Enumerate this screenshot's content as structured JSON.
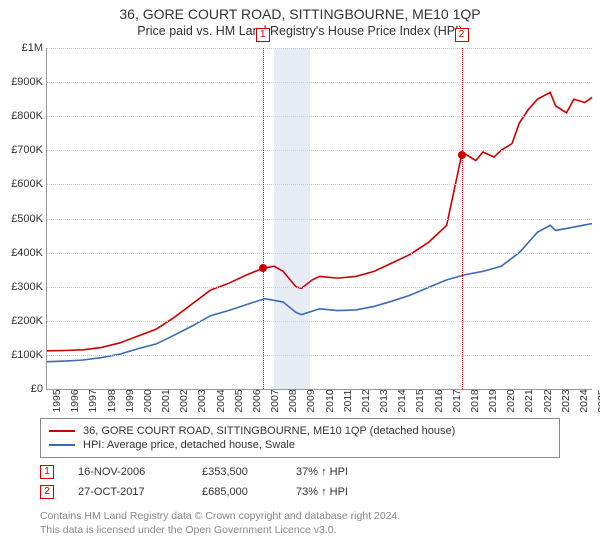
{
  "title": "36, GORE COURT ROAD, SITTINGBOURNE, ME10 1QP",
  "subtitle": "Price paid vs. HM Land Registry's House Price Index (HPI)",
  "chart": {
    "type": "line",
    "background_color": "#ffffff",
    "grid_color": "#cccccc",
    "axis_color": "#999999",
    "ylim": [
      0,
      1000000
    ],
    "yticks": [
      0,
      100000,
      200000,
      300000,
      400000,
      500000,
      600000,
      700000,
      800000,
      900000,
      1000000
    ],
    "ytick_labels": [
      "£0",
      "£100K",
      "£200K",
      "£300K",
      "£400K",
      "£500K",
      "£600K",
      "£700K",
      "£800K",
      "£900K",
      "£1M"
    ],
    "xlim": [
      1995,
      2025
    ],
    "xticks": [
      1995,
      1996,
      1997,
      1998,
      1999,
      2000,
      2001,
      2002,
      2003,
      2004,
      2005,
      2006,
      2007,
      2008,
      2009,
      2010,
      2011,
      2012,
      2013,
      2014,
      2015,
      2016,
      2017,
      2018,
      2019,
      2020,
      2021,
      2022,
      2023,
      2024,
      2025
    ],
    "label_fontsize": 11,
    "title_fontsize": 14,
    "line_width": 1.6,
    "band": {
      "start_year": 2007.5,
      "end_year": 2009.5,
      "color": "#e8edf5"
    },
    "series_property": {
      "label": "36, GORE COURT ROAD, SITTINGBOURNE, ME10 1QP (detached house)",
      "color": "#cc0000",
      "data": [
        [
          1995,
          112000
        ],
        [
          1996,
          113000
        ],
        [
          1997,
          115000
        ],
        [
          1998,
          122000
        ],
        [
          1999,
          135000
        ],
        [
          2000,
          155000
        ],
        [
          2001,
          175000
        ],
        [
          2002,
          210000
        ],
        [
          2003,
          250000
        ],
        [
          2004,
          290000
        ],
        [
          2005,
          310000
        ],
        [
          2006,
          335000
        ],
        [
          2006.88,
          353500
        ],
        [
          2007.5,
          360000
        ],
        [
          2008,
          345000
        ],
        [
          2008.7,
          300000
        ],
        [
          2009,
          295000
        ],
        [
          2009.6,
          320000
        ],
        [
          2010,
          330000
        ],
        [
          2011,
          325000
        ],
        [
          2012,
          330000
        ],
        [
          2013,
          345000
        ],
        [
          2014,
          370000
        ],
        [
          2015,
          395000
        ],
        [
          2016,
          430000
        ],
        [
          2017,
          480000
        ],
        [
          2017.82,
          685000
        ],
        [
          2018,
          690000
        ],
        [
          2018.6,
          670000
        ],
        [
          2019,
          695000
        ],
        [
          2019.6,
          680000
        ],
        [
          2020,
          700000
        ],
        [
          2020.6,
          720000
        ],
        [
          2021,
          780000
        ],
        [
          2021.5,
          820000
        ],
        [
          2022,
          850000
        ],
        [
          2022.7,
          870000
        ],
        [
          2023,
          830000
        ],
        [
          2023.6,
          810000
        ],
        [
          2024,
          850000
        ],
        [
          2024.6,
          840000
        ],
        [
          2025,
          855000
        ]
      ]
    },
    "series_hpi": {
      "label": "HPI: Average price, detached house, Swale",
      "color": "#3a6bb5",
      "data": [
        [
          1995,
          80000
        ],
        [
          1996,
          82000
        ],
        [
          1997,
          85000
        ],
        [
          1998,
          92000
        ],
        [
          1999,
          102000
        ],
        [
          2000,
          118000
        ],
        [
          2001,
          132000
        ],
        [
          2002,
          158000
        ],
        [
          2003,
          185000
        ],
        [
          2004,
          215000
        ],
        [
          2005,
          230000
        ],
        [
          2006,
          248000
        ],
        [
          2007,
          265000
        ],
        [
          2008,
          255000
        ],
        [
          2008.7,
          225000
        ],
        [
          2009,
          218000
        ],
        [
          2010,
          235000
        ],
        [
          2011,
          230000
        ],
        [
          2012,
          232000
        ],
        [
          2013,
          242000
        ],
        [
          2014,
          258000
        ],
        [
          2015,
          275000
        ],
        [
          2016,
          298000
        ],
        [
          2017,
          320000
        ],
        [
          2018,
          335000
        ],
        [
          2019,
          345000
        ],
        [
          2020,
          360000
        ],
        [
          2021,
          400000
        ],
        [
          2022,
          460000
        ],
        [
          2022.7,
          480000
        ],
        [
          2023,
          465000
        ],
        [
          2024,
          475000
        ],
        [
          2025,
          485000
        ]
      ]
    },
    "sale_markers": [
      {
        "num": "1",
        "year": 2006.88,
        "value": 353500,
        "line_color": "#cc0000"
      },
      {
        "num": "2",
        "year": 2017.82,
        "value": 685000,
        "line_color": "#cc0000"
      }
    ],
    "marker_dot_color": "#cc0000"
  },
  "legend": {
    "rows": [
      {
        "color": "#cc0000",
        "text": "36, GORE COURT ROAD, SITTINGBOURNE, ME10 1QP (detached house)"
      },
      {
        "color": "#3a6bb5",
        "text": "HPI: Average price, detached house, Swale"
      }
    ]
  },
  "sales": [
    {
      "num": "1",
      "box_color": "#cc0000",
      "date": "16-NOV-2006",
      "price": "£353,500",
      "pct": "37% ↑ HPI"
    },
    {
      "num": "2",
      "box_color": "#cc0000",
      "date": "27-OCT-2017",
      "price": "£685,000",
      "pct": "73% ↑ HPI"
    }
  ],
  "footer": {
    "line1": "Contains HM Land Registry data © Crown copyright and database right 2024.",
    "line2": "This data is licensed under the Open Government Licence v3.0."
  }
}
